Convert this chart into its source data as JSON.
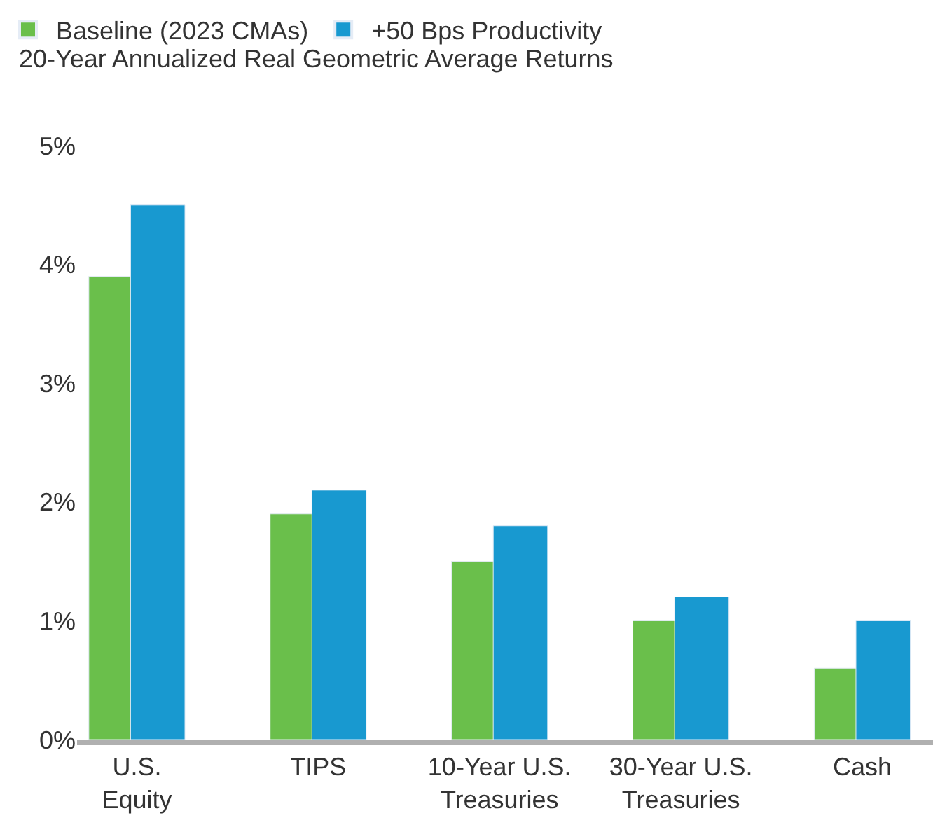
{
  "chart_data": {
    "type": "bar",
    "title": "20-Year Annualized Real Geometric Average Returns",
    "categories": [
      "U.S. Equity",
      "TIPS",
      "10-Year U.S. Treasuries",
      "30-Year U.S. Treasuries",
      "Cash"
    ],
    "series": [
      {
        "name": "Baseline (2023 CMAs)",
        "color": "#6abf4b",
        "values": [
          3.9,
          1.9,
          1.5,
          1.0,
          0.6
        ]
      },
      {
        "name": "+50 Bps Productivity",
        "color": "#1899d0",
        "values": [
          4.5,
          2.1,
          1.8,
          1.2,
          1.0
        ]
      }
    ],
    "ylim": [
      0,
      5
    ],
    "yticks": [
      {
        "value": 0,
        "label": "0%"
      },
      {
        "value": 1,
        "label": "1%"
      },
      {
        "value": 2,
        "label": "2%"
      },
      {
        "value": 3,
        "label": "3%"
      },
      {
        "value": 4,
        "label": "4%"
      },
      {
        "value": 5,
        "label": "5%"
      }
    ],
    "legend": "top left"
  }
}
